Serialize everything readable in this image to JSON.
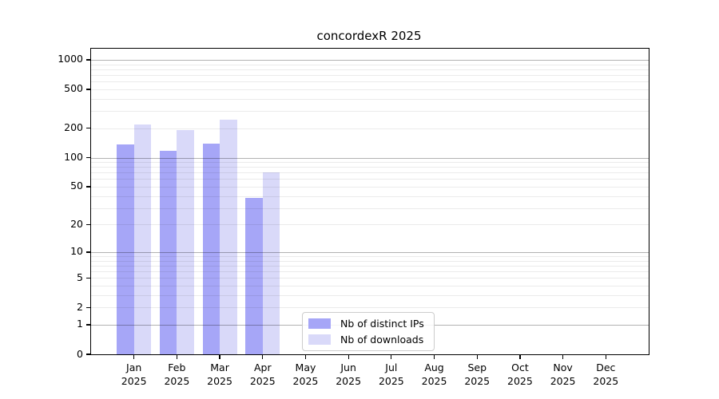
{
  "chart_data": {
    "type": "bar",
    "title": "concordexR 2025",
    "x_months": [
      "Jan",
      "Feb",
      "Mar",
      "Apr",
      "May",
      "Jun",
      "Jul",
      "Aug",
      "Sep",
      "Oct",
      "Nov",
      "Dec"
    ],
    "x_year": "2025",
    "yticks": [
      0,
      1,
      2,
      5,
      10,
      20,
      50,
      100,
      200,
      500,
      1000
    ],
    "y_scale": "log10(1+x)",
    "ylim": [
      0,
      1300
    ],
    "grid": true,
    "legend_position": "inside-lower-center",
    "series": [
      {
        "name": "Nb of distinct IPs",
        "color": "#a6a6f7",
        "values": [
          136,
          118,
          140,
          38,
          0,
          0,
          0,
          0,
          0,
          0,
          0,
          0
        ]
      },
      {
        "name": "Nb of downloads",
        "color": "#d9d9f9",
        "values": [
          220,
          190,
          246,
          70,
          0,
          0,
          0,
          0,
          0,
          0,
          0,
          0
        ]
      }
    ]
  }
}
